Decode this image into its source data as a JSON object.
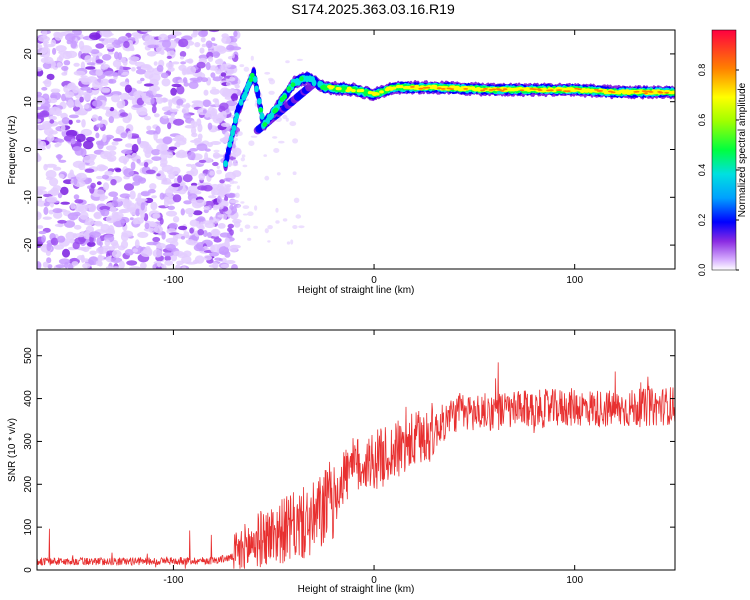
{
  "title": "S174.2025.363.03.16.R19",
  "chart_data": [
    {
      "type": "heatmap",
      "name": "spectrogram",
      "xlabel": "Height of straight line (km)",
      "ylabel": "Frequency (Hz)",
      "xlim": [
        -168,
        150
      ],
      "ylim": [
        -25,
        25
      ],
      "xticks": [
        -100,
        0,
        100
      ],
      "yticks": [
        -20,
        -10,
        0,
        10,
        20
      ],
      "colorbar": {
        "label": "Normalized spectral amplitude",
        "range": [
          0,
          0.96
        ],
        "ticks": [
          0,
          0.2,
          0.4,
          0.6,
          0.8
        ]
      },
      "ridge": {
        "description": "dominant signal line",
        "points": [
          {
            "x": -74,
            "y": -3
          },
          {
            "x": -68,
            "y": 8
          },
          {
            "x": -60,
            "y": 16
          },
          {
            "x": -55,
            "y": 5
          },
          {
            "x": -48,
            "y": 9
          },
          {
            "x": -40,
            "y": 14
          },
          {
            "x": -33,
            "y": 15
          },
          {
            "x": -25,
            "y": 13
          },
          {
            "x": -10,
            "y": 12.5
          },
          {
            "x": 0,
            "y": 11.5
          },
          {
            "x": 10,
            "y": 13
          },
          {
            "x": 30,
            "y": 13
          },
          {
            "x": 60,
            "y": 12.5
          },
          {
            "x": 100,
            "y": 12.5
          },
          {
            "x": 120,
            "y": 12
          },
          {
            "x": 150,
            "y": 12
          }
        ]
      }
    },
    {
      "type": "line",
      "name": "snr",
      "xlabel": "Height of straight line (km)",
      "ylabel": "SNR (10 * v/v)",
      "xlim": [
        -168,
        150
      ],
      "ylim": [
        0,
        560
      ],
      "xticks": [
        -100,
        0,
        100
      ],
      "yticks": [
        0,
        100,
        200,
        300,
        400,
        500
      ],
      "series": [
        {
          "name": "SNR",
          "color": "#e83030",
          "envelope": {
            "x": [
              -168,
              -120,
              -80,
              -70,
              -60,
              -50,
              -40,
              -30,
              -20,
              -15,
              -10,
              0,
              10,
              20,
              30,
              40,
              60,
              80,
              100,
              120,
              140,
              150
            ],
            "y": [
              20,
              20,
              22,
              30,
              65,
              85,
              100,
              115,
              170,
              220,
              240,
              255,
              275,
              300,
              325,
              365,
              370,
              375,
              380,
              375,
              380,
              385
            ]
          }
        }
      ]
    }
  ]
}
